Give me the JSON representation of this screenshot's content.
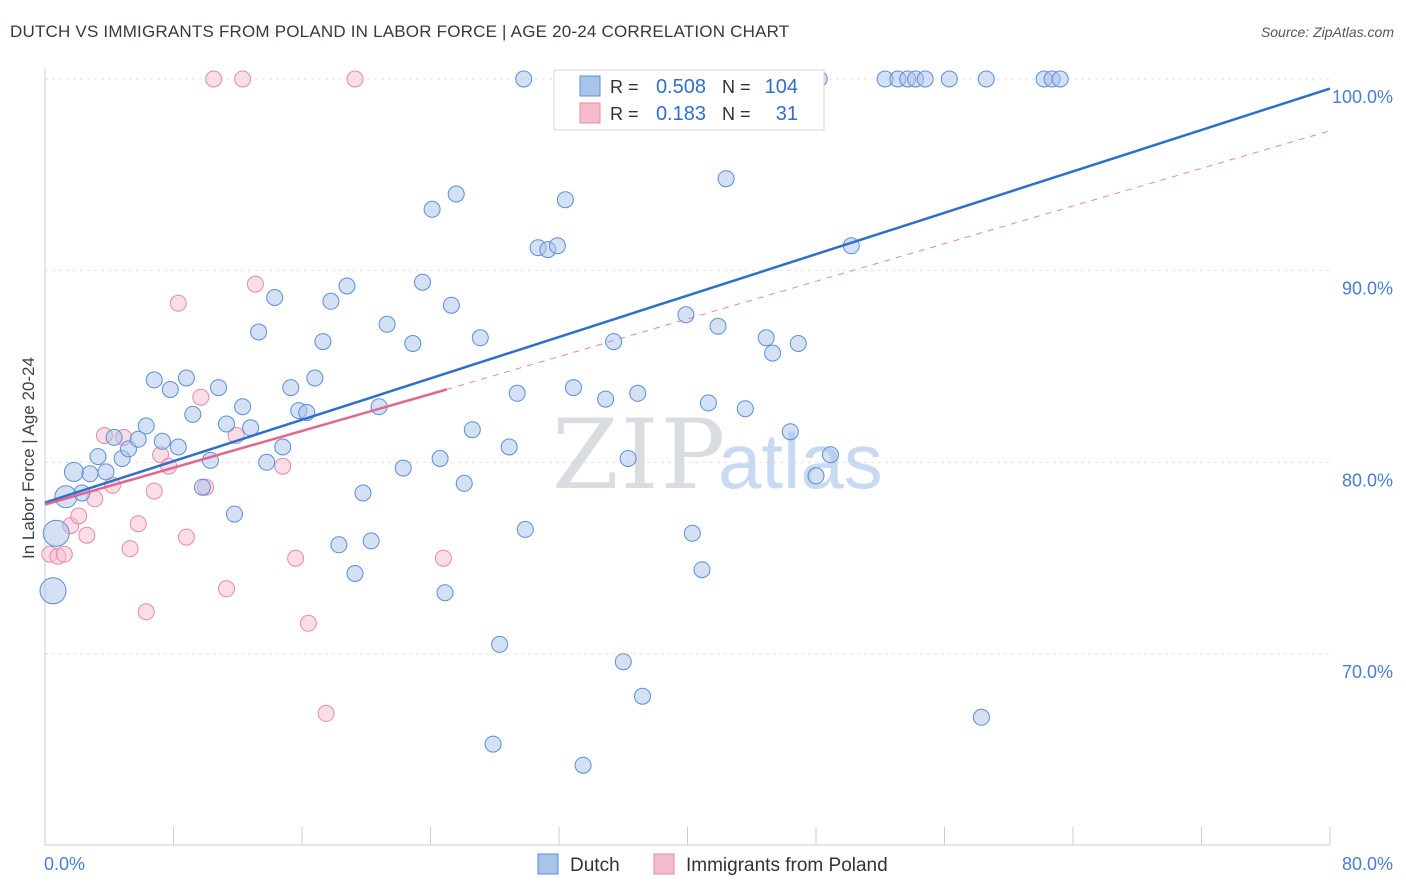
{
  "title": "DUTCH VS IMMIGRANTS FROM POLAND IN LABOR FORCE | AGE 20-24 CORRELATION CHART",
  "source": "Source: ZipAtlas.com",
  "watermark": {
    "zip": "ZIP",
    "atlas": "atlas"
  },
  "legend_box": {
    "rows": [
      {
        "r_label": "R =",
        "r_value": "0.508",
        "n_label": "N =",
        "n_value": "104"
      },
      {
        "r_label": "R =",
        "r_value": "0.183",
        "n_label": "N =",
        "n_value": "31"
      }
    ]
  },
  "chart_data": {
    "type": "scatter",
    "ylabel": "In Labor Force | Age 20-24",
    "xlim": [
      0,
      80
    ],
    "ylim": [
      62,
      101
    ],
    "x_tick_labels": [
      "0.0%",
      "80.0%"
    ],
    "y_ticks": [
      70,
      80,
      90,
      100
    ],
    "y_tick_labels": [
      "70.0%",
      "80.0%",
      "90.0%",
      "100.0%"
    ],
    "grid": true,
    "legend_position": "bottom-center",
    "colors": {
      "dutch": "#5b8fd6",
      "dutch_fill": "#a9c4ea",
      "dutch_line": "#2f6fcc",
      "poland": "#e88aa8",
      "poland_fill": "#f5bccd",
      "poland_line": "#e0688f",
      "axis_text": "#4a7fd0"
    },
    "series": [
      {
        "name": "Dutch",
        "r": 0.508,
        "n": 104,
        "trend": {
          "x0": 0,
          "y0": 77.9,
          "x1": 80,
          "y1": 99.5
        },
        "points": [
          [
            0.5,
            73.3
          ],
          [
            0.7,
            76.3
          ],
          [
            1.3,
            78.2
          ],
          [
            1.8,
            79.5
          ],
          [
            2.3,
            78.4
          ],
          [
            2.8,
            79.4
          ],
          [
            3.3,
            80.3
          ],
          [
            3.8,
            79.5
          ],
          [
            4.3,
            81.3
          ],
          [
            4.8,
            80.2
          ],
          [
            5.2,
            80.7
          ],
          [
            5.8,
            81.2
          ],
          [
            6.3,
            81.9
          ],
          [
            6.8,
            84.3
          ],
          [
            7.3,
            81.1
          ],
          [
            7.8,
            83.8
          ],
          [
            8.3,
            80.8
          ],
          [
            8.8,
            84.4
          ],
          [
            9.2,
            82.5
          ],
          [
            9.8,
            78.7
          ],
          [
            10.3,
            80.1
          ],
          [
            10.8,
            83.9
          ],
          [
            11.3,
            82.0
          ],
          [
            11.8,
            77.3
          ],
          [
            12.3,
            82.9
          ],
          [
            12.8,
            81.8
          ],
          [
            13.3,
            86.8
          ],
          [
            13.8,
            80.0
          ],
          [
            14.3,
            88.6
          ],
          [
            14.8,
            80.8
          ],
          [
            15.3,
            83.9
          ],
          [
            15.8,
            82.7
          ],
          [
            16.3,
            82.6
          ],
          [
            16.8,
            84.4
          ],
          [
            17.3,
            86.3
          ],
          [
            17.8,
            88.4
          ],
          [
            18.3,
            75.7
          ],
          [
            18.8,
            89.2
          ],
          [
            19.3,
            74.2
          ],
          [
            19.8,
            78.4
          ],
          [
            20.3,
            75.9
          ],
          [
            20.8,
            82.9
          ],
          [
            21.3,
            87.2
          ],
          [
            22.3,
            79.7
          ],
          [
            22.9,
            86.2
          ],
          [
            23.5,
            89.4
          ],
          [
            24.1,
            93.2
          ],
          [
            24.6,
            80.2
          ],
          [
            24.9,
            73.2
          ],
          [
            25.3,
            88.2
          ],
          [
            25.6,
            94.0
          ],
          [
            26.1,
            78.9
          ],
          [
            26.6,
            81.7
          ],
          [
            27.1,
            86.5
          ],
          [
            27.9,
            65.3
          ],
          [
            28.3,
            70.5
          ],
          [
            28.9,
            80.8
          ],
          [
            29.4,
            83.6
          ],
          [
            29.9,
            76.5
          ],
          [
            30.7,
            91.2
          ],
          [
            31.3,
            91.1
          ],
          [
            31.9,
            91.3
          ],
          [
            32.4,
            93.7
          ],
          [
            32.9,
            83.9
          ],
          [
            33.5,
            64.2
          ],
          [
            34.9,
            83.3
          ],
          [
            35.4,
            86.3
          ],
          [
            36.0,
            69.6
          ],
          [
            36.3,
            80.2
          ],
          [
            36.9,
            83.6
          ],
          [
            37.2,
            67.8
          ],
          [
            39.9,
            87.7
          ],
          [
            40.3,
            76.3
          ],
          [
            40.9,
            74.4
          ],
          [
            41.3,
            83.1
          ],
          [
            41.9,
            87.1
          ],
          [
            42.4,
            94.8
          ],
          [
            43.6,
            82.8
          ],
          [
            44.9,
            86.5
          ],
          [
            45.3,
            85.7
          ],
          [
            46.4,
            81.6
          ],
          [
            46.9,
            86.2
          ],
          [
            48.0,
            79.3
          ],
          [
            48.9,
            80.4
          ],
          [
            50.2,
            91.3
          ],
          [
            58.3,
            66.7
          ],
          [
            29.8,
            100
          ],
          [
            33.3,
            100
          ],
          [
            35.2,
            100
          ],
          [
            37.4,
            100
          ],
          [
            41.1,
            100
          ],
          [
            45.6,
            100
          ],
          [
            48.2,
            100
          ],
          [
            52.3,
            100
          ],
          [
            53.1,
            100
          ],
          [
            53.7,
            100
          ],
          [
            54.2,
            100
          ],
          [
            54.8,
            100
          ],
          [
            56.3,
            100
          ],
          [
            58.6,
            100
          ],
          [
            62.2,
            100
          ],
          [
            62.7,
            100
          ],
          [
            63.2,
            100
          ],
          [
            35.9,
            100
          ]
        ]
      },
      {
        "name": "Immigrants from Poland",
        "r": 0.183,
        "n": 31,
        "trend": {
          "x0": 0,
          "y0": 77.8,
          "x1": 25,
          "y1": 83.8
        },
        "trend_extended": {
          "x0": 25,
          "y0": 83.8,
          "x1": 80,
          "y1": 97.3
        },
        "points": [
          [
            0.3,
            75.2
          ],
          [
            0.8,
            75.1
          ],
          [
            1.2,
            75.2
          ],
          [
            1.6,
            76.7
          ],
          [
            2.1,
            77.2
          ],
          [
            2.6,
            76.2
          ],
          [
            3.1,
            78.1
          ],
          [
            3.7,
            81.4
          ],
          [
            4.2,
            78.8
          ],
          [
            4.9,
            81.3
          ],
          [
            5.3,
            75.5
          ],
          [
            5.8,
            76.8
          ],
          [
            6.3,
            72.2
          ],
          [
            6.8,
            78.5
          ],
          [
            7.2,
            80.4
          ],
          [
            7.7,
            79.8
          ],
          [
            8.3,
            88.3
          ],
          [
            8.8,
            76.1
          ],
          [
            9.7,
            83.4
          ],
          [
            10.0,
            78.7
          ],
          [
            10.5,
            100
          ],
          [
            11.9,
            81.4
          ],
          [
            12.3,
            100
          ],
          [
            13.1,
            89.3
          ],
          [
            14.8,
            79.8
          ],
          [
            15.6,
            75.0
          ],
          [
            16.4,
            71.6
          ],
          [
            17.5,
            66.9
          ],
          [
            19.3,
            100
          ],
          [
            24.8,
            75.0
          ],
          [
            11.3,
            73.4
          ]
        ]
      }
    ]
  }
}
